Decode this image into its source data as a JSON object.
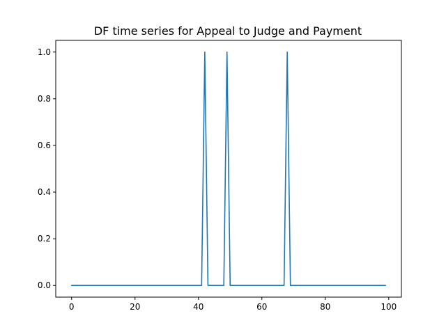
{
  "chart_data": {
    "type": "line",
    "title": "DF time series for Appeal to Judge and Payment",
    "xlabel": "",
    "ylabel": "",
    "xlim": [
      -5,
      104
    ],
    "ylim": [
      -0.05,
      1.05
    ],
    "grid": false,
    "x_ticks": [
      0,
      20,
      40,
      60,
      80,
      100
    ],
    "x_tick_labels": [
      "0",
      "20",
      "40",
      "60",
      "80",
      "100"
    ],
    "y_ticks": [
      0.0,
      0.2,
      0.4,
      0.6,
      0.8,
      1.0
    ],
    "y_tick_labels": [
      "0.0",
      "0.2",
      "0.4",
      "0.6",
      "0.8",
      "1.0"
    ],
    "series": [
      {
        "color": "#1f77b4",
        "x": [
          0,
          41,
          42,
          43,
          48,
          49,
          50,
          67,
          68,
          69,
          99
        ],
        "y": [
          0,
          0,
          1,
          0,
          0,
          1,
          0,
          0,
          1,
          0,
          0
        ]
      }
    ]
  }
}
